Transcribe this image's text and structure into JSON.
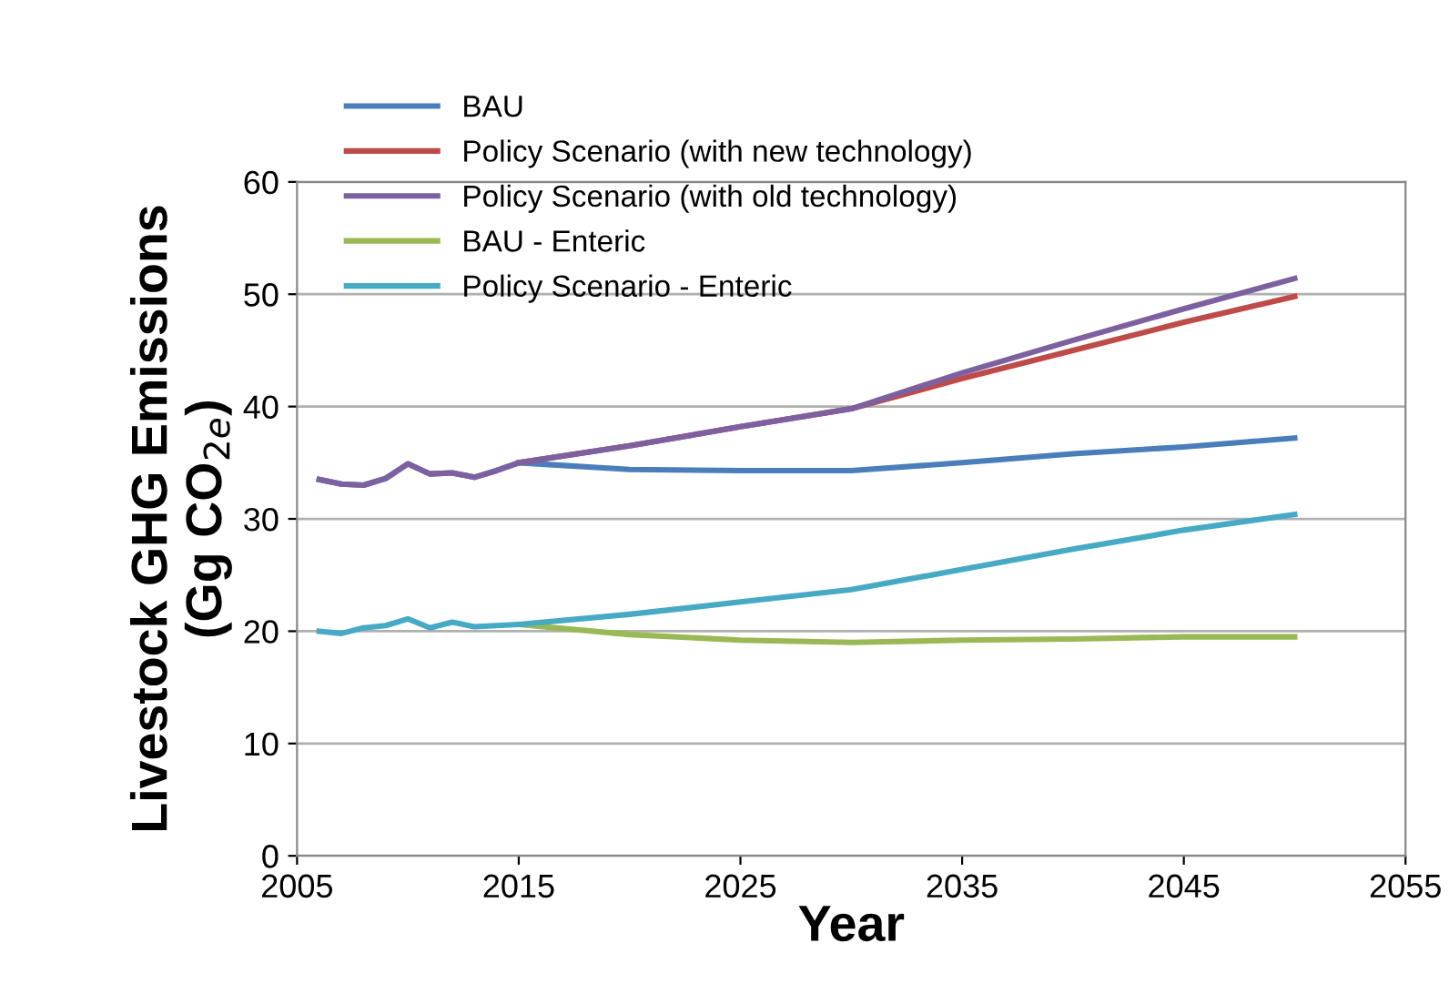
{
  "chart_data": {
    "type": "line",
    "xlabel": "Year",
    "ylabel": "Livestock GHG Emissions\n(Gg CO$_{2e}$)",
    "x": [
      2006,
      2007,
      2008,
      2009,
      2010,
      2011,
      2012,
      2013,
      2014,
      2015,
      2020,
      2025,
      2030,
      2035,
      2040,
      2045,
      2050
    ],
    "series": [
      {
        "name": "BAU",
        "color": "#4a7ebb",
        "values": [
          33.5,
          33.1,
          33.0,
          33.6,
          34.9,
          34.0,
          34.1,
          33.7,
          34.3,
          35.0,
          34.4,
          34.3,
          34.3,
          35.0,
          35.8,
          36.4,
          37.2
        ]
      },
      {
        "name": "Policy Scenario (with new technology)",
        "color": "#be4b48",
        "values": [
          null,
          null,
          null,
          null,
          null,
          null,
          null,
          null,
          null,
          35.0,
          36.5,
          38.2,
          39.8,
          42.5,
          45.0,
          47.5,
          49.8
        ]
      },
      {
        "name": "Policy Scenario (with old technology)",
        "color": "#7d60a0",
        "values": [
          33.5,
          33.1,
          33.0,
          33.6,
          34.9,
          34.0,
          34.1,
          33.7,
          34.3,
          35.0,
          36.5,
          38.2,
          39.8,
          43.0,
          45.9,
          48.7,
          51.4
        ]
      },
      {
        "name": "BAU - Enteric",
        "color": "#98b954",
        "values": [
          null,
          null,
          null,
          null,
          null,
          null,
          null,
          null,
          null,
          20.6,
          19.7,
          19.2,
          19.0,
          19.2,
          19.3,
          19.5,
          19.5
        ]
      },
      {
        "name": "Policy Scenario - Enteric",
        "color": "#46aac5",
        "values": [
          20.0,
          19.8,
          20.3,
          20.5,
          21.1,
          20.3,
          20.8,
          20.4,
          20.5,
          20.6,
          21.5,
          22.6,
          23.7,
          25.5,
          27.3,
          29.0,
          30.4
        ]
      }
    ],
    "xlim": [
      2005,
      2055
    ],
    "xticks": [
      2005,
      2015,
      2025,
      2035,
      2045,
      2055
    ],
    "ylim": [
      0,
      60
    ],
    "yticks": [
      0,
      10,
      20,
      30,
      40,
      50,
      60
    ],
    "grid": "y",
    "legend": "top left",
    "marker": "none",
    "line_style": "solid"
  }
}
